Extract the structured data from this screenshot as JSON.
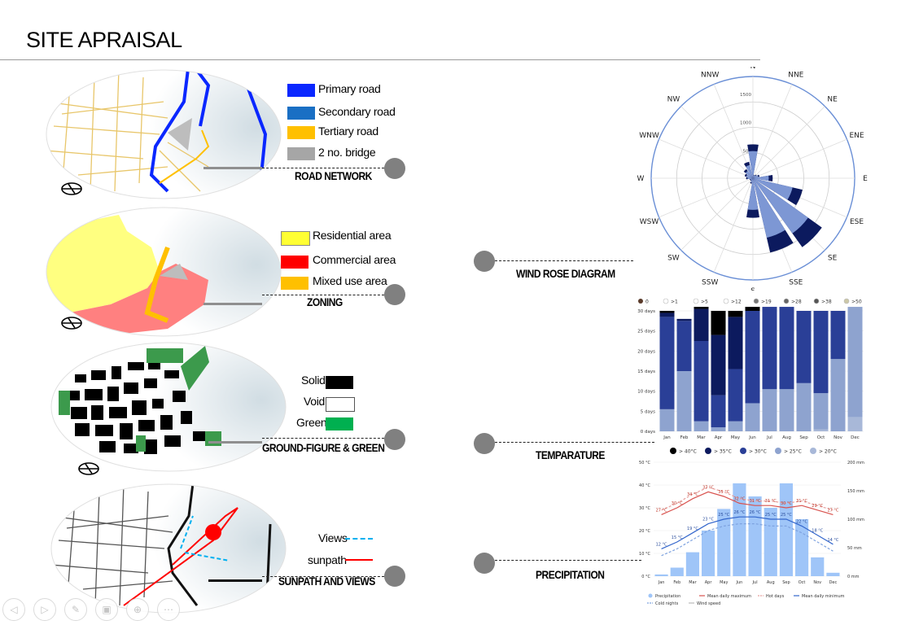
{
  "title": "SITE APRAISAL",
  "panels": {
    "road": {
      "caption": "ROAD NETWORK",
      "legend": [
        {
          "label": "Primary road",
          "color": "#0a27ff"
        },
        {
          "label": "Secondary road",
          "color": "#1a6fc4"
        },
        {
          "label": "Tertiary road",
          "color": "#ffc000"
        },
        {
          "label": "2 no. bridge",
          "color": "#a6a6a6"
        }
      ]
    },
    "zoning": {
      "caption": "ZONING",
      "legend": [
        {
          "label": "Residential area",
          "color": "#ffff33"
        },
        {
          "label": "Commercial area",
          "color": "#ff0000"
        },
        {
          "label": "Mixed use area",
          "color": "#ffc000"
        }
      ]
    },
    "ground": {
      "caption": "GROUND-FIGURE & GREEN",
      "legend": [
        {
          "label": "Solid",
          "color": "#000000"
        },
        {
          "label": "Void",
          "color": "#ffffff"
        },
        {
          "label": "Green",
          "color": "#00b050"
        }
      ]
    },
    "sunpath": {
      "caption": "SUNPATH AND VIEWS",
      "legend": [
        {
          "label": "Views",
          "color": "#00b0f0"
        },
        {
          "label": "sunpath",
          "color": "#ff0000"
        }
      ]
    }
  },
  "diagram_captions": {
    "wind": "WIND ROSE DIAGRAM",
    "temp": "TEMPARATURE",
    "precip": "PRECIPITATION"
  },
  "chart_data": [
    {
      "type": "radar",
      "directions": [
        "N",
        "NNE",
        "NE",
        "ENE",
        "E",
        "ESE",
        "SE",
        "SSE",
        "S",
        "SSW",
        "SW",
        "WSW",
        "W",
        "WNW",
        "NW",
        "NNW"
      ],
      "rlabels": [
        "500",
        "1000",
        "1500"
      ],
      "values": [
        600,
        60,
        80,
        120,
        350,
        900,
        1500,
        1350,
        700,
        100,
        60,
        60,
        120,
        150,
        200,
        300
      ]
    },
    {
      "type": "bar",
      "legend_top": [
        ">1",
        ">5",
        ">12",
        ">19",
        ">28",
        ">38",
        ">50"
      ],
      "legend_top_zero": "0",
      "ylabels": [
        "0 days",
        "5 days",
        "10 days",
        "15 days",
        "20 days",
        "25 days",
        "30 days"
      ],
      "categories": [
        "Jan",
        "Feb",
        "Mar",
        "Apr",
        "May",
        "Jun",
        "Jul",
        "Aug",
        "Sep",
        "Oct",
        "Nov",
        "Dec"
      ],
      "series": [
        {
          "name": "> 20°C",
          "color": "#a8b8d8",
          "values": [
            0,
            0,
            0,
            0,
            0,
            0,
            0,
            0,
            0,
            0.5,
            0,
            3.5
          ]
        },
        {
          "name": "> 25°C",
          "color": "#8ea3cf",
          "values": [
            5.5,
            15,
            2.5,
            1,
            2.5,
            7,
            10.5,
            10.5,
            12,
            9,
            18,
            27.5
          ]
        },
        {
          "name": "> 30°C",
          "color": "#2a3f97",
          "values": [
            23,
            12.5,
            20,
            8,
            13,
            23,
            20.5,
            20.5,
            18,
            20.5,
            12,
            0
          ]
        },
        {
          "name": "> 35°C",
          "color": "#0c1a5e",
          "values": [
            1,
            0.5,
            8,
            15,
            13,
            0,
            0,
            0,
            0,
            0,
            0,
            0
          ]
        },
        {
          "name": "> 40°C",
          "color": "#000000",
          "values": [
            0.5,
            0,
            0.5,
            6,
            1.5,
            1,
            0,
            0,
            0,
            0,
            0,
            0
          ]
        }
      ],
      "ylim": [
        0,
        30
      ]
    },
    {
      "type": "bar",
      "categories": [
        "Jan",
        "Feb",
        "Mar",
        "Apr",
        "May",
        "Jun",
        "Jul",
        "Aug",
        "Sep",
        "Oct",
        "Nov",
        "Dec"
      ],
      "left_labels": [
        "0 °C",
        "10 °C",
        "20 °C",
        "30 °C",
        "40 °C",
        "50 °C"
      ],
      "right_labels": [
        "0 mm",
        "50 mm",
        "100 mm",
        "150 mm",
        "200 mm"
      ],
      "series": [
        {
          "name": "Precipitation",
          "color": "#9fc5f8",
          "values": [
            3,
            15,
            42,
            80,
            118,
            163,
            140,
            120,
            163,
            100,
            33,
            6
          ]
        },
        {
          "name": "Mean daily maximum",
          "color": "#d9534f",
          "values": [
            27,
            30,
            34,
            37,
            35,
            32,
            31,
            31,
            30,
            31,
            29,
            27
          ]
        },
        {
          "name": "Mean daily minimum",
          "color": "#3366cc",
          "values": [
            12,
            15,
            19,
            23,
            25,
            26,
            26,
            25,
            25,
            22,
            18,
            14
          ]
        }
      ],
      "max_labels": [
        "27 °C",
        "30 °C",
        "34 °C",
        "37 °C",
        "35 °C",
        "32 °C",
        "31 °C",
        "31 °C",
        "30 °C",
        "31 °C",
        "29 °C",
        "27 °C"
      ],
      "min_labels": [
        "12 °C",
        "15 °C",
        "19 °C",
        "23 °C",
        "25 °C",
        "26 °C",
        "26 °C",
        "25 °C",
        "25 °C",
        "22 °C",
        "18 °C",
        "14 °C"
      ],
      "legend": [
        "Precipitation",
        "Mean daily maximum",
        "Hot days",
        "Mean daily minimum",
        "Cold nights",
        "Wind speed"
      ],
      "ylim_temp": [
        0,
        50
      ],
      "ylim_mm": [
        0,
        200
      ]
    }
  ],
  "nav_icons": [
    "back-icon",
    "forward-icon",
    "pen-icon",
    "slides-icon",
    "zoom-icon",
    "more-icon"
  ]
}
